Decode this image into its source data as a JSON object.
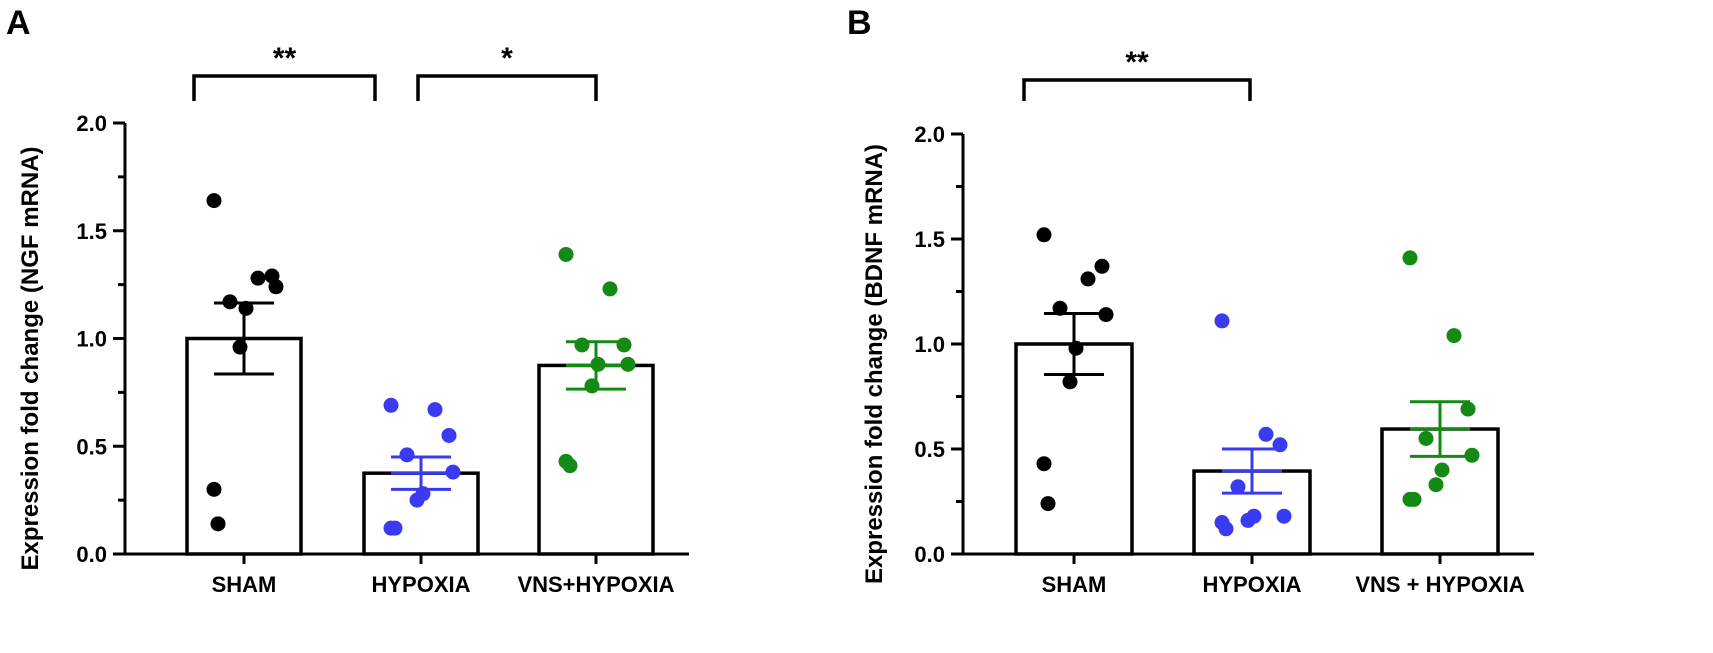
{
  "chart_data": [
    {
      "panel": "A",
      "type": "bar",
      "ylabel": "Expression fold change (NGF mRNA)",
      "xlabel": "",
      "ylim": [
        0,
        2.0
      ],
      "yticks": [
        "0.0",
        "0.5",
        "1.0",
        "1.5",
        "2.0"
      ],
      "categories": [
        "SHAM",
        "HYPOXIA",
        "VNS+HYPOXIA"
      ],
      "colors": [
        "#000000",
        "#3a3af0",
        "#138a13"
      ],
      "values": [
        1.0,
        0.375,
        0.875
      ],
      "sem": [
        0.165,
        0.075,
        0.11
      ],
      "points": [
        [
          1.64,
          1.28,
          1.29,
          1.17,
          1.24,
          1.14,
          0.96,
          0.3,
          0.14
        ],
        [
          0.69,
          0.67,
          0.55,
          0.46,
          0.38,
          0.28,
          0.25,
          0.12,
          0.12
        ],
        [
          1.39,
          1.23,
          0.97,
          0.97,
          0.88,
          0.88,
          0.78,
          0.43,
          0.41
        ]
      ],
      "significance": [
        {
          "from": 0,
          "to": 1,
          "label": "**"
        },
        {
          "from": 1,
          "to": 2,
          "label": "*"
        }
      ]
    },
    {
      "panel": "B",
      "type": "bar",
      "ylabel": "Expression fold change (BDNF mRNA)",
      "xlabel": "",
      "ylim": [
        0,
        2.0
      ],
      "yticks": [
        "0.0",
        "0.5",
        "1.0",
        "1.5",
        "2.0"
      ],
      "categories": [
        "SHAM",
        "HYPOXIA",
        "VNS + HYPOXIA"
      ],
      "colors": [
        "#000000",
        "#3a3af0",
        "#138a13"
      ],
      "values": [
        1.0,
        0.395,
        0.595
      ],
      "sem": [
        0.145,
        0.105,
        0.13
      ],
      "points": [
        [
          1.52,
          1.31,
          1.37,
          1.17,
          1.14,
          0.98,
          0.82,
          0.43,
          0.24
        ],
        [
          1.11,
          0.57,
          0.52,
          0.32,
          0.18,
          0.18,
          0.16,
          0.15,
          0.12
        ],
        [
          1.41,
          1.04,
          0.69,
          0.55,
          0.47,
          0.4,
          0.33,
          0.26,
          0.26
        ]
      ],
      "significance": [
        {
          "from": 0,
          "to": 1,
          "label": "**"
        }
      ]
    }
  ]
}
